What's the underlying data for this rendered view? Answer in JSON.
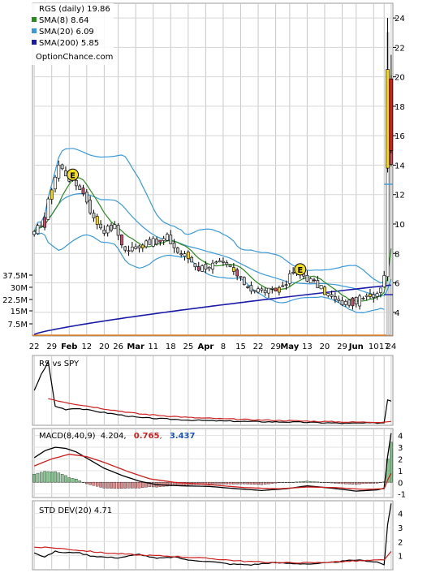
{
  "chart_data": [
    {
      "type": "candlestick",
      "panel": "price",
      "legend": {
        "title": "RGS (daily) 19.86",
        "items": [
          {
            "label": "SMA(8) 8.64",
            "color": "#2a8a1f"
          },
          {
            "label": "SMA(20) 6.09",
            "color": "#3a9ad9"
          },
          {
            "label": "SMA(200) 5.85",
            "color": "#1a1aa8"
          }
        ],
        "source": "OptionChance.com"
      },
      "x_tick_labels": [
        "22",
        "29",
        "Feb",
        "12",
        "20",
        "26",
        "Mar",
        "11",
        "18",
        "25",
        "Apr",
        "8",
        "15",
        "22",
        "29",
        "May",
        "13",
        "20",
        "29",
        "Jun",
        "10",
        "17",
        "24"
      ],
      "y_axis": {
        "ticks": [
          "4",
          "6",
          "8",
          "10",
          "12",
          "14",
          "16",
          "18",
          "20",
          "22",
          "24"
        ],
        "range": [
          2.5,
          25
        ]
      },
      "volume_axis": {
        "ticks": [
          "7.5M",
          "15M",
          "22.5M",
          "30M",
          "37.5M"
        ]
      },
      "price_anchors": [
        [
          0,
          9.3
        ],
        [
          3,
          10.5
        ],
        [
          5,
          12.5
        ],
        [
          7,
          14.0
        ],
        [
          9,
          13.4
        ],
        [
          11,
          12.8
        ],
        [
          13,
          12.5
        ],
        [
          15,
          11.6
        ],
        [
          17,
          10.3
        ],
        [
          20,
          9.6
        ],
        [
          23,
          9.8
        ],
        [
          26,
          8.2
        ],
        [
          29,
          8.4
        ],
        [
          32,
          8.9
        ],
        [
          35,
          8.7
        ],
        [
          38,
          9.1
        ],
        [
          41,
          8.1
        ],
        [
          44,
          7.7
        ],
        [
          47,
          7.0
        ],
        [
          50,
          7.2
        ],
        [
          53,
          7.3
        ],
        [
          56,
          7.0
        ],
        [
          59,
          6.2
        ],
        [
          62,
          5.6
        ],
        [
          65,
          5.5
        ],
        [
          68,
          5.4
        ],
        [
          71,
          5.8
        ],
        [
          74,
          6.7
        ],
        [
          77,
          6.5
        ],
        [
          80,
          6.0
        ],
        [
          83,
          5.4
        ],
        [
          86,
          4.8
        ],
        [
          89,
          4.6
        ],
        [
          92,
          4.8
        ],
        [
          95,
          5.0
        ],
        [
          98,
          5.3
        ],
        [
          100,
          6.5
        ],
        [
          101,
          14.0
        ],
        [
          102,
          19.86
        ]
      ],
      "sma200_range": [
        2.5,
        5.85
      ],
      "earnings_markers": [
        {
          "x": 11,
          "label": "E"
        },
        {
          "x": 76,
          "label": "E"
        }
      ],
      "price_reference_lines": [
        {
          "color": "#1a1aa8",
          "value": 5.2
        },
        {
          "color": "#3a9ad9",
          "value": 12.7
        }
      ]
    },
    {
      "type": "line",
      "panel": "rs",
      "label": "RS vs SPY",
      "series": [
        {
          "name": "RS",
          "color": "#000000",
          "anchors": [
            [
              0,
              0.55
            ],
            [
              2,
              0.8
            ],
            [
              4,
              1.0
            ],
            [
              6,
              0.3
            ],
            [
              9,
              0.25
            ],
            [
              12,
              0.27
            ],
            [
              20,
              0.2
            ],
            [
              30,
              0.12
            ],
            [
              45,
              0.08
            ],
            [
              60,
              0.06
            ],
            [
              75,
              0.05
            ],
            [
              90,
              0.03
            ],
            [
              100,
              0.04
            ],
            [
              101,
              0.4
            ],
            [
              102,
              0.38
            ]
          ]
        },
        {
          "name": "RS SMA",
          "color": "#cc1f1f",
          "anchors": [
            [
              4,
              0.42
            ],
            [
              10,
              0.35
            ],
            [
              20,
              0.26
            ],
            [
              30,
              0.18
            ],
            [
              45,
              0.12
            ],
            [
              60,
              0.09
            ],
            [
              75,
              0.07
            ],
            [
              90,
              0.05
            ],
            [
              100,
              0.05
            ],
            [
              102,
              0.06
            ]
          ]
        }
      ]
    },
    {
      "type": "bar+line",
      "panel": "macd",
      "label": "MACD(8,40,9)",
      "value_main": "4.204",
      "value_signal": "0.765",
      "value_hist": "3.437",
      "y_axis": {
        "ticks": [
          "-1",
          "0",
          "1",
          "2",
          "3",
          "4"
        ],
        "range": [
          -1.3,
          4.6
        ]
      },
      "macd_anchors": [
        [
          0,
          2.1
        ],
        [
          3,
          2.7
        ],
        [
          6,
          3.0
        ],
        [
          9,
          2.9
        ],
        [
          12,
          2.6
        ],
        [
          16,
          1.9
        ],
        [
          20,
          1.2
        ],
        [
          25,
          0.6
        ],
        [
          30,
          0.1
        ],
        [
          35,
          -0.2
        ],
        [
          42,
          -0.3
        ],
        [
          50,
          -0.35
        ],
        [
          58,
          -0.55
        ],
        [
          65,
          -0.7
        ],
        [
          72,
          -0.55
        ],
        [
          78,
          -0.3
        ],
        [
          85,
          -0.5
        ],
        [
          92,
          -0.75
        ],
        [
          98,
          -0.65
        ],
        [
          100,
          -0.5
        ],
        [
          101,
          2.2
        ],
        [
          102,
          4.204
        ]
      ],
      "signal_anchors": [
        [
          0,
          1.4
        ],
        [
          5,
          2.0
        ],
        [
          10,
          2.4
        ],
        [
          15,
          2.2
        ],
        [
          20,
          1.7
        ],
        [
          27,
          0.9
        ],
        [
          33,
          0.3
        ],
        [
          40,
          0.0
        ],
        [
          50,
          -0.2
        ],
        [
          60,
          -0.45
        ],
        [
          70,
          -0.55
        ],
        [
          78,
          -0.4
        ],
        [
          86,
          -0.45
        ],
        [
          94,
          -0.6
        ],
        [
          100,
          -0.55
        ],
        [
          101,
          0.2
        ],
        [
          102,
          0.765
        ]
      ],
      "colors": {
        "macd": "#000000",
        "signal": "#cc1f1f",
        "hist_pos": "#2a9a3a",
        "hist_neg": "#c42a2a",
        "value_signal": "#cc1f1f",
        "value_hist": "#1a55c0"
      }
    },
    {
      "type": "line",
      "panel": "stddev",
      "label": "STD DEV(20) 4.71",
      "y_axis": {
        "ticks": [
          "1",
          "2",
          "3",
          "4"
        ],
        "range": [
          0,
          4.9
        ]
      },
      "series": [
        {
          "name": "STD DEV",
          "color": "#000000",
          "anchors": [
            [
              0,
              1.2
            ],
            [
              3,
              0.9
            ],
            [
              6,
              1.3
            ],
            [
              9,
              1.2
            ],
            [
              12,
              1.25
            ],
            [
              16,
              1.0
            ],
            [
              20,
              0.9
            ],
            [
              24,
              0.85
            ],
            [
              30,
              1.1
            ],
            [
              35,
              0.8
            ],
            [
              40,
              0.9
            ],
            [
              45,
              0.65
            ],
            [
              50,
              0.6
            ],
            [
              56,
              0.4
            ],
            [
              62,
              0.35
            ],
            [
              68,
              0.5
            ],
            [
              74,
              0.45
            ],
            [
              80,
              0.4
            ],
            [
              86,
              0.55
            ],
            [
              92,
              0.7
            ],
            [
              98,
              0.55
            ],
            [
              100,
              0.35
            ],
            [
              101,
              3.2
            ],
            [
              102,
              4.71
            ]
          ]
        },
        {
          "name": "STD DEV SMA",
          "color": "#cc1f1f",
          "anchors": [
            [
              0,
              1.6
            ],
            [
              6,
              1.55
            ],
            [
              12,
              1.4
            ],
            [
              20,
              1.2
            ],
            [
              30,
              1.05
            ],
            [
              40,
              0.95
            ],
            [
              50,
              0.8
            ],
            [
              60,
              0.6
            ],
            [
              70,
              0.5
            ],
            [
              80,
              0.5
            ],
            [
              90,
              0.6
            ],
            [
              100,
              0.7
            ],
            [
              102,
              1.3
            ]
          ]
        }
      ]
    }
  ]
}
